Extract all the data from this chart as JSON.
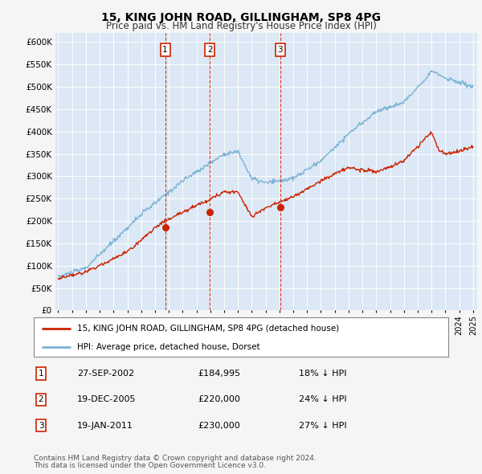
{
  "title": "15, KING JOHN ROAD, GILLINGHAM, SP8 4PG",
  "subtitle": "Price paid vs. HM Land Registry's House Price Index (HPI)",
  "fig_bg": "#f5f5f5",
  "plot_bg": "#dce8f5",
  "grid_color": "#ffffff",
  "ylim": [
    0,
    620000
  ],
  "yticks": [
    0,
    50000,
    100000,
    150000,
    200000,
    250000,
    300000,
    350000,
    400000,
    450000,
    500000,
    550000,
    600000
  ],
  "transactions": [
    {
      "date": "2002-09-27",
      "price": 184995,
      "label": "1"
    },
    {
      "date": "2005-12-19",
      "price": 220000,
      "label": "2"
    },
    {
      "date": "2011-01-19",
      "price": 230000,
      "label": "3"
    }
  ],
  "table_rows": [
    {
      "num": "1",
      "date": "27-SEP-2002",
      "price": "£184,995",
      "pct": "18%",
      "dir": "↓",
      "vs": "HPI"
    },
    {
      "num": "2",
      "date": "19-DEC-2005",
      "price": "£220,000",
      "pct": "24%",
      "dir": "↓",
      "vs": "HPI"
    },
    {
      "num": "3",
      "date": "19-JAN-2011",
      "price": "£230,000",
      "pct": "27%",
      "dir": "↓",
      "vs": "HPI"
    }
  ],
  "legend_line1": "15, KING JOHN ROAD, GILLINGHAM, SP8 4PG (detached house)",
  "legend_line2": "HPI: Average price, detached house, Dorset",
  "footnote1": "Contains HM Land Registry data © Crown copyright and database right 2024.",
  "footnote2": "This data is licensed under the Open Government Licence v3.0.",
  "hpi_color": "#7ab3d4",
  "price_color": "#cc2200",
  "vline_color": "#cc2200",
  "box_color": "#cc2200"
}
